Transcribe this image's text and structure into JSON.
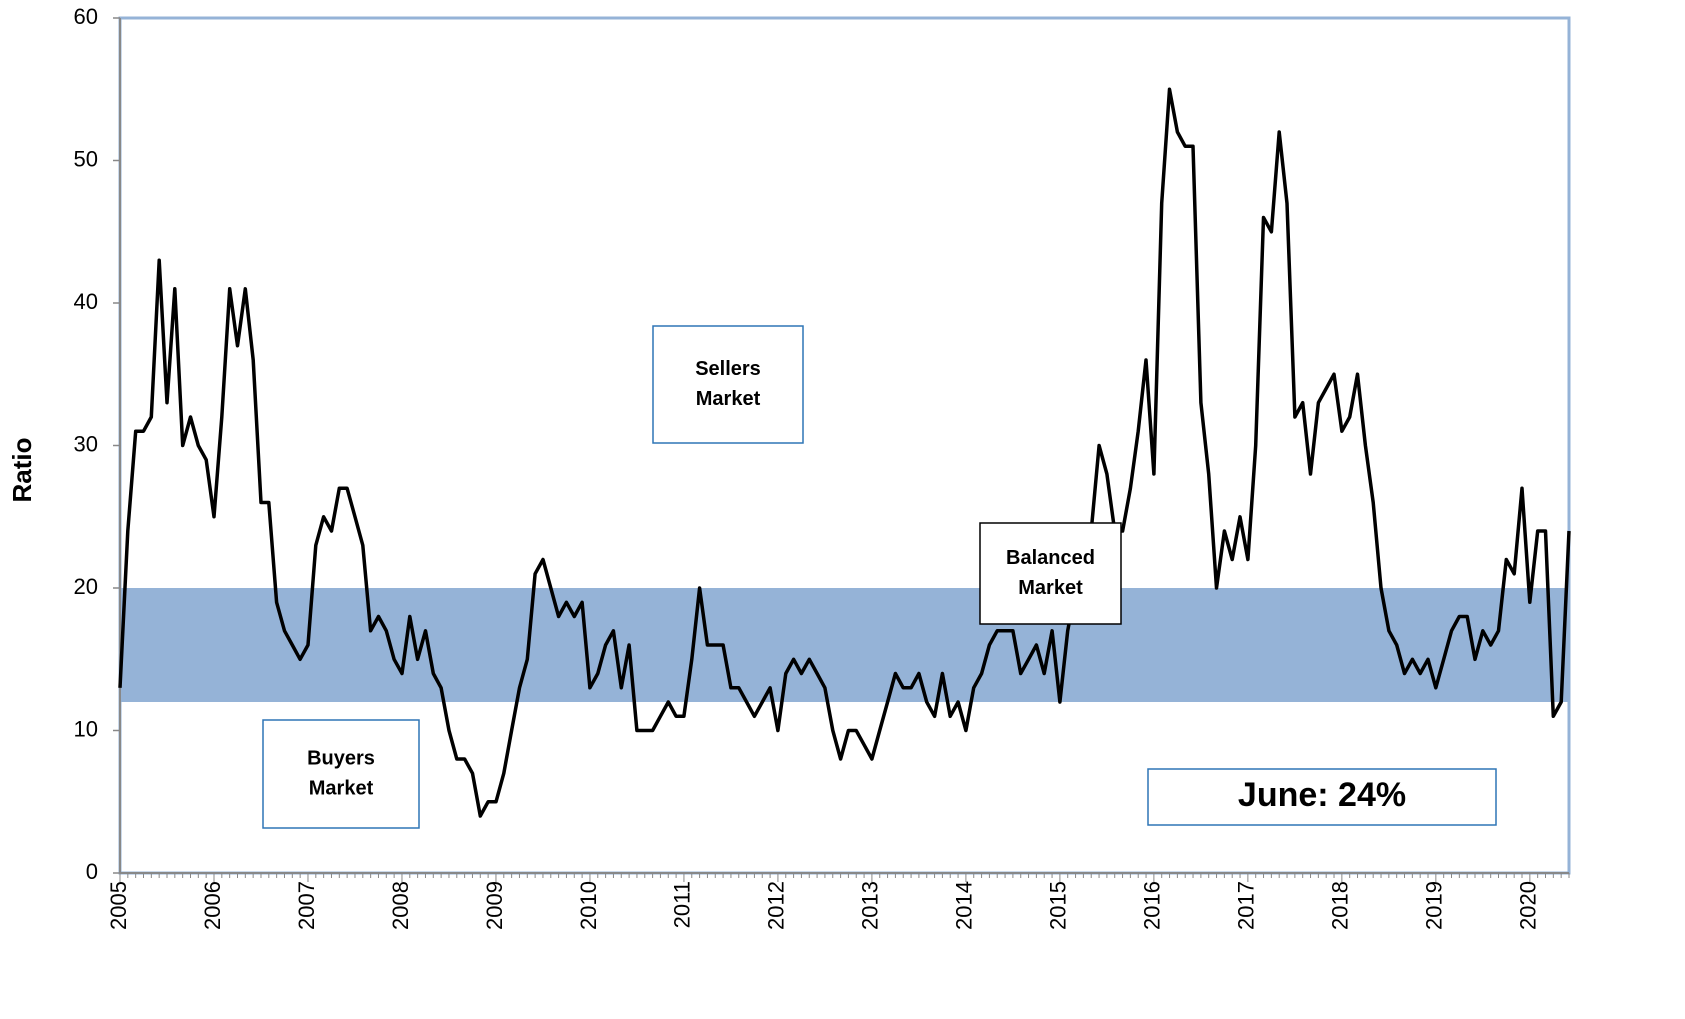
{
  "chart_data": {
    "type": "line",
    "y_label": "Ratio",
    "categories": [
      "2005",
      null,
      null,
      null,
      null,
      null,
      null,
      null,
      null,
      null,
      null,
      null,
      "2006",
      null,
      null,
      null,
      null,
      null,
      null,
      null,
      null,
      null,
      null,
      null,
      "2007",
      null,
      null,
      null,
      null,
      null,
      null,
      null,
      null,
      null,
      null,
      null,
      "2008",
      null,
      null,
      null,
      null,
      null,
      null,
      null,
      null,
      null,
      null,
      null,
      "2009",
      null,
      null,
      null,
      null,
      null,
      null,
      null,
      null,
      null,
      null,
      null,
      "2010",
      null,
      null,
      null,
      null,
      null,
      null,
      null,
      null,
      null,
      null,
      null,
      "2011",
      null,
      null,
      null,
      null,
      null,
      null,
      null,
      null,
      null,
      null,
      null,
      "2012",
      null,
      null,
      null,
      null,
      null,
      null,
      null,
      null,
      null,
      null,
      null,
      "2013",
      null,
      null,
      null,
      null,
      null,
      null,
      null,
      null,
      null,
      null,
      null,
      "2014",
      null,
      null,
      null,
      null,
      null,
      null,
      null,
      null,
      null,
      null,
      null,
      "2015",
      null,
      null,
      null,
      null,
      null,
      null,
      null,
      null,
      null,
      null,
      null,
      "2016",
      null,
      null,
      null,
      null,
      null,
      null,
      null,
      null,
      null,
      null,
      null,
      "2017",
      null,
      null,
      null,
      null,
      null,
      null,
      null,
      null,
      null,
      null,
      null,
      "2018",
      null,
      null,
      null,
      null,
      null,
      null,
      null,
      null,
      null,
      null,
      null,
      "2019",
      null,
      null,
      null,
      null,
      null,
      null,
      null,
      null,
      null,
      null,
      null,
      "2020",
      null,
      null,
      null,
      null,
      null
    ],
    "values": [
      13,
      24,
      31,
      31,
      32,
      43,
      33,
      41,
      30,
      32,
      30,
      29,
      25,
      32,
      41,
      37,
      41,
      36,
      26,
      26,
      19,
      17,
      16,
      15,
      16,
      23,
      25,
      24,
      27,
      27,
      25,
      23,
      17,
      18,
      17,
      15,
      14,
      18,
      15,
      17,
      14,
      13,
      10,
      8,
      8,
      7,
      4,
      5,
      5,
      7,
      10,
      13,
      15,
      21,
      22,
      20,
      18,
      19,
      18,
      19,
      13,
      14,
      16,
      17,
      13,
      16,
      10,
      10,
      10,
      11,
      12,
      11,
      11,
      15,
      20,
      16,
      16,
      16,
      13,
      13,
      12,
      11,
      12,
      13,
      10,
      14,
      15,
      14,
      15,
      14,
      13,
      10,
      8,
      10,
      10,
      9,
      8,
      10,
      12,
      14,
      13,
      13,
      14,
      12,
      11,
      14,
      11,
      12,
      10,
      13,
      14,
      16,
      17,
      17,
      17,
      14,
      15,
      16,
      14,
      17,
      12,
      17,
      20,
      22,
      24,
      30,
      28,
      24,
      24,
      27,
      31,
      36,
      28,
      47,
      55,
      52,
      51,
      51,
      33,
      28,
      20,
      24,
      22,
      25,
      22,
      30,
      46,
      45,
      52,
      47,
      32,
      33,
      28,
      33,
      34,
      35,
      31,
      32,
      35,
      30,
      26,
      20,
      17,
      16,
      14,
      15,
      14,
      15,
      13,
      15,
      17,
      18,
      18,
      15,
      17,
      16,
      17,
      22,
      21,
      27,
      19,
      24,
      24,
      11,
      12,
      24
    ],
    "color": "#000000",
    "band": [
      12,
      20
    ],
    "band_color": "#95b3d7",
    "ylim": [
      0,
      60
    ],
    "yticks": [
      0,
      10,
      20,
      30,
      40,
      50,
      60
    ],
    "annotations": [
      {
        "lines": [
          "Sellers",
          "Market"
        ],
        "border": "#2e75b6"
      },
      {
        "lines": [
          "Buyers",
          "Market"
        ],
        "border": "#2e75b6"
      },
      {
        "lines": [
          "Balanced",
          "Market"
        ],
        "border": "#000000"
      },
      {
        "lines": [
          "June: 24%"
        ],
        "border": "#2e75b6"
      }
    ]
  }
}
